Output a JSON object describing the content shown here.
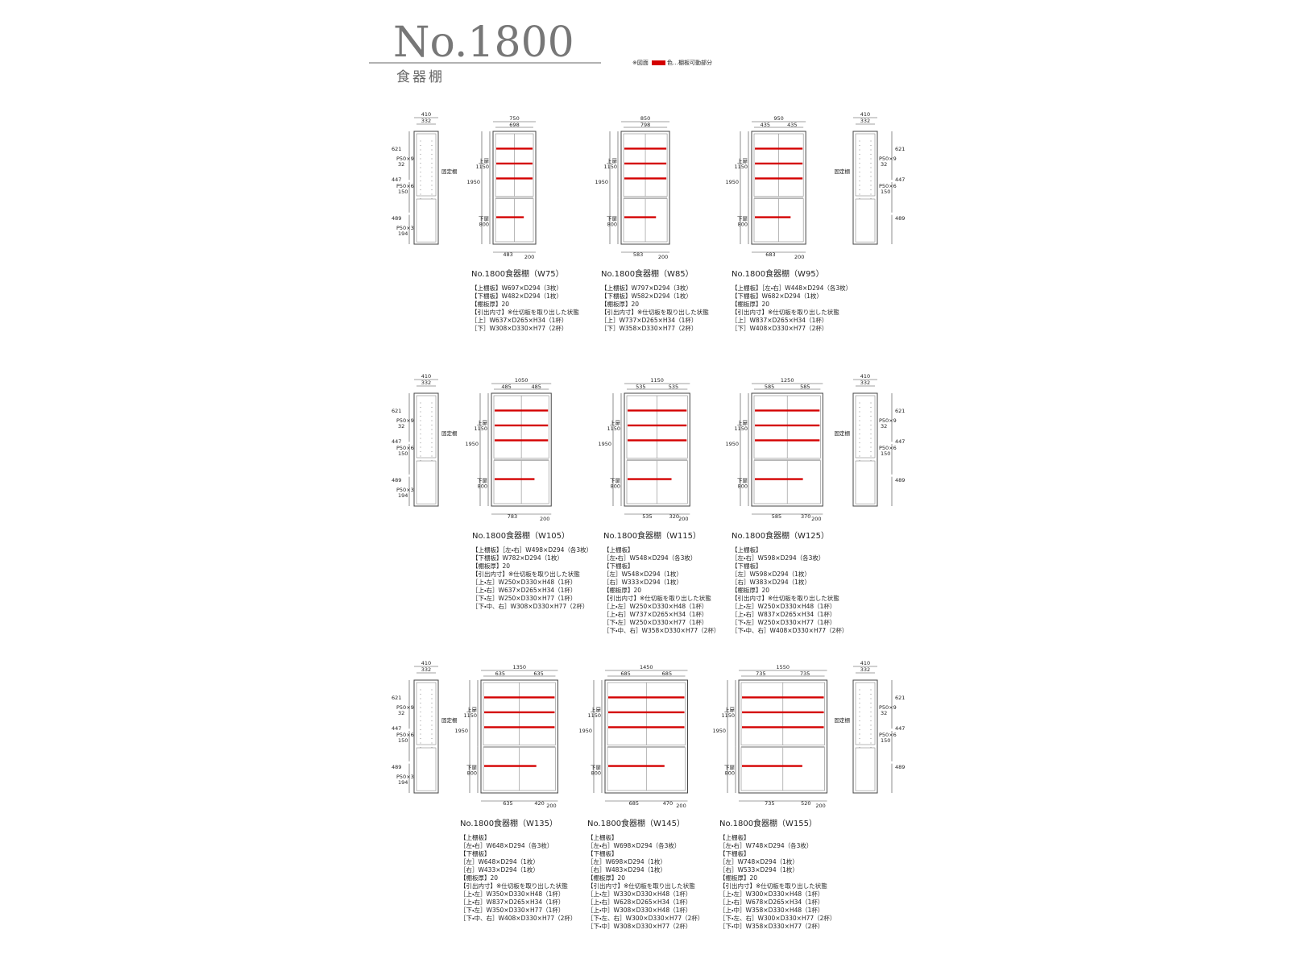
{
  "header": {
    "title": "No.1800",
    "subtitle": "食器棚"
  },
  "legend": {
    "prefix": "※図面",
    "suffix": "色…棚板可動部分"
  },
  "side_views": [
    {
      "width": "410",
      "inner": "332",
      "upper": "621",
      "pitch_upper": "P50×9",
      "pitch_upper_n": "32",
      "middle": "447",
      "pitch_mid": "P50×6",
      "pitch_mid_n": "150",
      "lower": "489",
      "pitch_lower": "P50×3",
      "pitch_lower_n": "194",
      "fixed": "固定棚"
    },
    {
      "width": "410",
      "inner": "332",
      "upper": "621",
      "pitch_upper": "P50×9",
      "pitch_upper_n": "32",
      "middle": "447",
      "pitch_mid": "P50×6",
      "pitch_mid_n": "150",
      "lower": "489",
      "fixed": "固定棚"
    },
    {
      "width": "410",
      "inner": "332",
      "upper": "621",
      "pitch_upper": "P50×9",
      "pitch_upper_n": "32",
      "middle": "447",
      "pitch_mid": "P50×6",
      "pitch_mid_n": "150",
      "lower": "489",
      "pitch_lower": "P50×3",
      "pitch_lower_n": "194",
      "fixed": "固定棚"
    },
    {
      "width": "410",
      "inner": "332",
      "upper": "621",
      "pitch_upper": "P50×9",
      "pitch_upper_n": "32",
      "middle": "447",
      "pitch_mid": "P50×6",
      "pitch_mid_n": "150",
      "lower": "489",
      "fixed": "固定棚"
    },
    {
      "width": "410",
      "inner": "332",
      "upper": "621",
      "pitch_upper": "P50×9",
      "pitch_upper_n": "32",
      "middle": "447",
      "pitch_mid": "P50×6",
      "pitch_mid_n": "150",
      "lower": "489",
      "pitch_lower": "P50×3",
      "pitch_lower_n": "194",
      "fixed": "固定棚"
    },
    {
      "width": "410",
      "inner": "332",
      "upper": "621",
      "pitch_upper": "P50×9",
      "pitch_upper_n": "32",
      "middle": "447",
      "pitch_mid": "P50×6",
      "pitch_mid_n": "150",
      "lower": "489",
      "fixed": "固定棚"
    }
  ],
  "products": [
    {
      "name": "No.1800食器棚（W75）",
      "width_total": "750",
      "width_parts": [
        "698"
      ],
      "bottom_dims": [
        "483",
        "200"
      ],
      "upper_label": "上扉",
      "upper_height": "1150",
      "total_height": "1950",
      "lower_label": "下扉",
      "lower_height": "800",
      "specs": [
        "【上棚板】W697×D294（3枚）",
        "【下棚板】W482×D294（1枚）",
        "【棚板厚】20",
        "【引出内寸】※仕切板を取り出した状態",
        "［上］W637×D265×H34（1杯）",
        "［下］W308×D330×H77（2杯）"
      ]
    },
    {
      "name": "No.1800食器棚（W85）",
      "width_total": "850",
      "width_parts": [
        "798"
      ],
      "bottom_dims": [
        "583",
        "200"
      ],
      "upper_label": "上扉",
      "upper_height": "1150",
      "total_height": "1950",
      "lower_label": "下扉",
      "lower_height": "800",
      "specs": [
        "【上棚板】W797×D294（3枚）",
        "【下棚板】W582×D294（1枚）",
        "【棚板厚】20",
        "【引出内寸】※仕切板を取り出した状態",
        "［上］W737×D265×H34（1杯）",
        "［下］W358×D330×H77（2杯）"
      ]
    },
    {
      "name": "No.1800食器棚（W95）",
      "width_total": "950",
      "width_parts": [
        "435",
        "435"
      ],
      "bottom_dims": [
        "683",
        "200"
      ],
      "upper_label": "上扉",
      "upper_height": "1150",
      "total_height": "1950",
      "lower_label": "下扉",
      "lower_height": "800",
      "specs": [
        "【上棚板】［左・右］W448×D294（各3枚）",
        "【下棚板】W682×D294（1枚）",
        "【棚板厚】20",
        "【引出内寸】※仕切板を取り出した状態",
        "［上］W837×D265×H34（1杯）",
        "［下］W408×D330×H77（2杯）"
      ]
    },
    {
      "name": "No.1800食器棚（W105）",
      "width_total": "1050",
      "width_parts": [
        "485",
        "485"
      ],
      "bottom_dims": [
        "783",
        "200"
      ],
      "upper_label": "上扉",
      "upper_height": "1150",
      "total_height": "1950",
      "lower_label": "下扉",
      "lower_height": "800",
      "specs": [
        "【上棚板】［左・右］W498×D294（各3枚）",
        "【下棚板】W782×D294（1枚）",
        "【棚板厚】20",
        "【引出内寸】※仕切板を取り出した状態",
        "［上・左］W250×D330×H48（1杯）",
        "［上・右］W637×D265×H34（1杯）",
        "［下・左］W250×D330×H77（1杯）",
        "［下・中、右］W308×D330×H77（2杯）"
      ]
    },
    {
      "name": "No.1800食器棚（W115）",
      "width_total": "1150",
      "width_parts": [
        "535",
        "535"
      ],
      "bottom_dims": [
        "535",
        "320",
        "200"
      ],
      "upper_label": "上扉",
      "upper_height": "1150",
      "total_height": "1950",
      "lower_label": "下扉",
      "lower_height": "800",
      "specs": [
        "【上棚板】",
        "［左・右］W548×D294（各3枚）",
        "【下棚板】",
        "［左］W548×D294（1枚）",
        "［右］W333×D294（1枚）",
        "【棚板厚】20",
        "【引出内寸】※仕切板を取り出した状態",
        "［上・左］W250×D330×H48（1杯）",
        "［上・右］W737×D265×H34（1杯）",
        "［下・左］W250×D330×H77（1杯）",
        "［下・中、右］W358×D330×H77（2杯）"
      ]
    },
    {
      "name": "No.1800食器棚（W125）",
      "width_total": "1250",
      "width_parts": [
        "585",
        "585"
      ],
      "bottom_dims": [
        "585",
        "370",
        "200"
      ],
      "upper_label": "上扉",
      "upper_height": "1150",
      "total_height": "1950",
      "lower_label": "下扉",
      "lower_height": "800",
      "specs": [
        "【上棚板】",
        "［左・右］W598×D294（各3枚）",
        "【下棚板】",
        "［左］W598×D294（1枚）",
        "［右］W383×D294（1枚）",
        "【棚板厚】20",
        "【引出内寸】※仕切板を取り出した状態",
        "［上・左］W250×D330×H48（1杯）",
        "［上・右］W837×D265×H34（1杯）",
        "［下・左］W250×D330×H77（1杯）",
        "［下・中、右］W408×D330×H77（2杯）"
      ]
    },
    {
      "name": "No.1800食器棚（W135）",
      "width_total": "1350",
      "width_parts": [
        "635",
        "635"
      ],
      "bottom_dims": [
        "635",
        "420",
        "200"
      ],
      "upper_label": "上扉",
      "upper_height": "1150",
      "total_height": "1950",
      "lower_label": "下扉",
      "lower_height": "800",
      "specs": [
        "【上棚板】",
        "［左・右］W648×D294（各3枚）",
        "【下棚板】",
        "［左］W648×D294（1枚）",
        "［右］W433×D294（1枚）",
        "【棚板厚】20",
        "【引出内寸】※仕切板を取り出した状態",
        "［上・左］W350×D330×H48（1杯）",
        "［上・右］W837×D265×H34（1杯）",
        "［下・左］W350×D330×H77（1杯）",
        "［下・中、右］W408×D330×H77（2杯）"
      ]
    },
    {
      "name": "No.1800食器棚（W145）",
      "width_total": "1450",
      "width_parts": [
        "685",
        "685"
      ],
      "bottom_dims": [
        "685",
        "470",
        "200"
      ],
      "upper_label": "上扉",
      "upper_height": "1150",
      "total_height": "1950",
      "lower_label": "下扉",
      "lower_height": "800",
      "specs": [
        "【上棚板】",
        "［左・右］W698×D294（各3枚）",
        "【下棚板】",
        "［左］W698×D294（1枚）",
        "［右］W483×D294（1枚）",
        "【棚板厚】20",
        "【引出内寸】※仕切板を取り出した状態",
        "［上・左］W330×D330×H48（1杯）",
        "［上・右］W628×D265×H34（1杯）",
        "［上・中］W308×D330×H48（1杯）",
        "［下・左、右］W300×D330×H77（2杯）",
        "［下・中］W308×D330×H77（2杯）"
      ]
    },
    {
      "name": "No.1800食器棚（W155）",
      "width_total": "1550",
      "width_parts": [
        "735",
        "735"
      ],
      "bottom_dims": [
        "735",
        "520",
        "200"
      ],
      "upper_label": "上扉",
      "upper_height": "1150",
      "total_height": "1950",
      "lower_label": "下扉",
      "lower_height": "800",
      "specs": [
        "【上棚板】",
        "［左・右］W748×D294（各3枚）",
        "【下棚板】",
        "［左］W748×D294（1枚）",
        "［右］W533×D294（1枚）",
        "【棚板厚】20",
        "【引出内寸】※仕切板を取り出した状態",
        "［上・左］W300×D330×H48（1杯）",
        "［上・右］W678×D265×H34（1杯）",
        "［上・中］W358×D330×H48（1杯）",
        "［下・左、右］W300×D330×H77（2杯）",
        "［下・中］W358×D330×H77（2杯）"
      ]
    }
  ]
}
